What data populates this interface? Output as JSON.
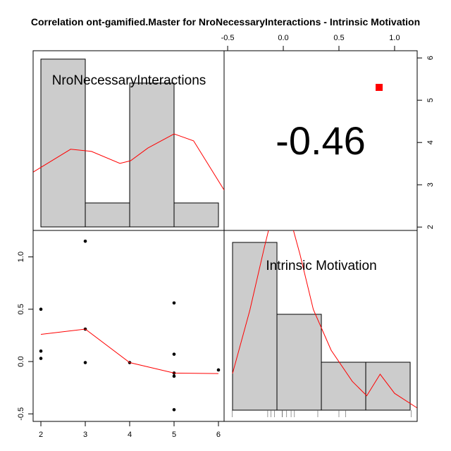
{
  "chart_data": {
    "type": "pairs",
    "title": "Correlation ont-gamified.Master for NroNecessaryInteractions - Intrinsic Motivation",
    "variables": [
      "NroNecessaryInteractions",
      "Intrinsic Motivation"
    ],
    "correlation": -0.46,
    "nni_xlim": [
      1.825,
      6.127
    ],
    "nni_ylim": [
      1.92,
      6.17
    ],
    "nni_ticks": [
      2,
      3,
      4,
      5,
      6
    ],
    "im_xlim": [
      -0.532,
      1.203
    ],
    "im_ylim": [
      -0.572,
      1.253
    ],
    "im_ticks": [
      {
        "value": -0.5,
        "label": "-0.5"
      },
      {
        "value": 0,
        "label": "0.0"
      },
      {
        "value": 0.5,
        "label": "0.5"
      },
      {
        "value": 1,
        "label": "1.0"
      }
    ],
    "scatter": {
      "color": "#000000",
      "x": [
        2,
        2,
        2,
        3,
        3,
        3,
        4,
        5,
        5,
        5,
        5,
        5,
        6
      ],
      "y": [
        0.5,
        0.1,
        0.03,
        1.15,
        0.31,
        -0.01,
        -0.01,
        0.56,
        0.07,
        -0.11,
        -0.14,
        -0.46,
        -0.08
      ]
    },
    "smooth": {
      "color": "#ff0000",
      "x": [
        2,
        3,
        4,
        5,
        6
      ],
      "y": [
        0.26,
        0.31,
        -0.01,
        -0.11,
        -0.115
      ]
    },
    "hist1": {
      "color": "#cccccc",
      "bins": [
        2,
        3,
        4,
        5,
        6
      ],
      "counts": [
        7,
        1,
        6,
        1
      ],
      "ylim": [
        -0.147,
        7.35
      ]
    },
    "hist2": {
      "color": "#cccccc",
      "bins": [
        -0.456,
        -0.057,
        0.342,
        0.741,
        1.14
      ],
      "counts": [
        7,
        4,
        2,
        2
      ],
      "ylim": [
        -0.47,
        7.5
      ]
    },
    "density1": {
      "color": "#ff0000",
      "x": [
        1.83,
        2.67,
        3.14,
        3.78,
        4.02,
        4.41,
        5.0,
        5.44,
        6.13
      ],
      "y": [
        2.29,
        3.24,
        3.15,
        2.65,
        2.76,
        3.29,
        3.88,
        3.59,
        1.53
      ]
    },
    "density2": {
      "color": "#ff0000",
      "x": [
        -0.456,
        -0.3,
        -0.17,
        -0.08,
        0.05,
        0.15,
        0.27,
        0.43,
        0.62,
        0.75,
        0.87,
        1.0,
        1.2
      ],
      "y": [
        1.53,
        4.18,
        6.8,
        8.5,
        8.2,
        6.5,
        4.2,
        2.5,
        1.2,
        0.6,
        1.5,
        0.7,
        0.1
      ]
    }
  }
}
